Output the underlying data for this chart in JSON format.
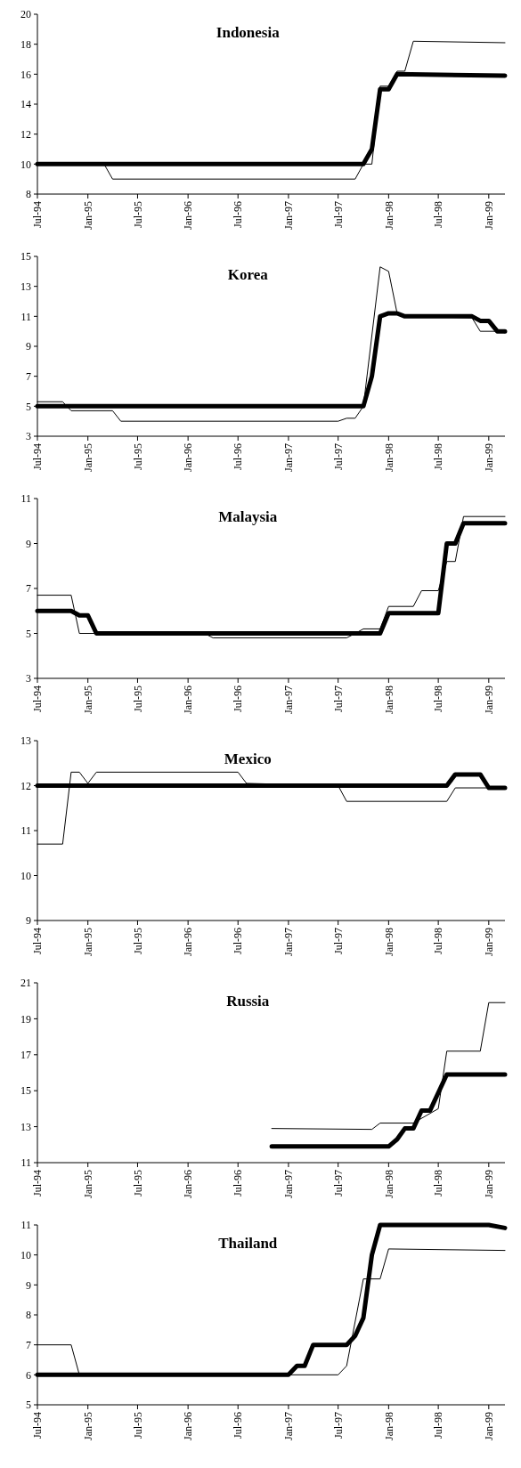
{
  "chart_data": [
    {
      "type": "line",
      "title": "Indonesia",
      "xlim": [
        "1994-07",
        "1999-03"
      ],
      "xticks": [
        {
          "value": "1994-07",
          "label": "Jul-94"
        },
        {
          "value": "1995-01",
          "label": "Jan-95"
        },
        {
          "value": "1995-07",
          "label": "Jul-95"
        },
        {
          "value": "1996-01",
          "label": "Jan-96"
        },
        {
          "value": "1996-07",
          "label": "Jul-96"
        },
        {
          "value": "1997-01",
          "label": "Jan-97"
        },
        {
          "value": "1997-07",
          "label": "Jul-97"
        },
        {
          "value": "1998-01",
          "label": "Jan-98"
        },
        {
          "value": "1998-07",
          "label": "Jul-98"
        },
        {
          "value": "1999-01",
          "label": "Jan-99"
        }
      ],
      "ylim": [
        8,
        20
      ],
      "yticks": [
        8,
        10,
        12,
        14,
        16,
        18,
        20
      ],
      "series": [
        {
          "color": "#000000",
          "x": [
            "1994-07",
            "1995-03",
            "1995-04",
            "1997-09",
            "1997-10",
            "1997-11",
            "1997-12",
            "1998-01",
            "1998-02",
            "1998-03",
            "1998-04",
            "1999-03"
          ],
          "values": [
            10,
            10,
            9,
            9,
            10,
            10,
            15.2,
            15.2,
            16.2,
            16.2,
            18.2,
            18.1
          ]
        },
        {
          "color": "#000000",
          "x": [
            "1994-07",
            "1997-10",
            "1997-11",
            "1997-12",
            "1998-01",
            "1998-02",
            "1999-03"
          ],
          "values": [
            10,
            10,
            11,
            15,
            15,
            16,
            15.9
          ]
        }
      ]
    },
    {
      "type": "line",
      "title": "Korea",
      "xlim": [
        "1994-07",
        "1999-03"
      ],
      "xticks": [
        {
          "value": "1994-07",
          "label": "Jul-94"
        },
        {
          "value": "1995-01",
          "label": "Jan-95"
        },
        {
          "value": "1995-07",
          "label": "Jul-95"
        },
        {
          "value": "1996-01",
          "label": "Jan-96"
        },
        {
          "value": "1996-07",
          "label": "Jul-96"
        },
        {
          "value": "1997-01",
          "label": "Jan-97"
        },
        {
          "value": "1997-07",
          "label": "Jul-97"
        },
        {
          "value": "1998-01",
          "label": "Jan-98"
        },
        {
          "value": "1998-07",
          "label": "Jul-98"
        },
        {
          "value": "1999-01",
          "label": "Jan-99"
        }
      ],
      "ylim": [
        3,
        15
      ],
      "yticks": [
        3,
        5,
        7,
        9,
        11,
        13,
        15
      ],
      "series": [
        {
          "color": "#000000",
          "x": [
            "1994-07",
            "1994-10",
            "1994-11",
            "1995-04",
            "1995-05",
            "1997-07",
            "1997-08",
            "1997-09",
            "1997-10",
            "1997-12",
            "1998-01",
            "1998-02",
            "1998-03",
            "1998-11",
            "1998-12",
            "1999-02",
            "1999-03"
          ],
          "values": [
            5.3,
            5.3,
            4.7,
            4.7,
            4,
            4,
            4.2,
            4.2,
            5,
            14.3,
            14,
            11.2,
            11,
            10.9,
            10,
            10,
            9.9
          ]
        },
        {
          "color": "#000000",
          "x": [
            "1994-07",
            "1997-10",
            "1997-11",
            "1997-12",
            "1998-01",
            "1998-02",
            "1998-03",
            "1998-11",
            "1998-12",
            "1999-01",
            "1999-02",
            "1999-03"
          ],
          "values": [
            5,
            5,
            7,
            11,
            11.2,
            11.2,
            11,
            11,
            10.7,
            10.7,
            10,
            10
          ]
        }
      ]
    },
    {
      "type": "line",
      "title": "Malaysia",
      "xlim": [
        "1994-07",
        "1999-03"
      ],
      "xticks": [
        {
          "value": "1994-07",
          "label": "Jul-94"
        },
        {
          "value": "1995-01",
          "label": "Jan-95"
        },
        {
          "value": "1995-07",
          "label": "Jul-95"
        },
        {
          "value": "1996-01",
          "label": "Jan-96"
        },
        {
          "value": "1996-07",
          "label": "Jul-96"
        },
        {
          "value": "1997-01",
          "label": "Jan-97"
        },
        {
          "value": "1997-07",
          "label": "Jul-97"
        },
        {
          "value": "1998-01",
          "label": "Jan-98"
        },
        {
          "value": "1998-07",
          "label": "Jul-98"
        },
        {
          "value": "1999-01",
          "label": "Jan-99"
        }
      ],
      "ylim": [
        3,
        11
      ],
      "yticks": [
        3,
        5,
        7,
        9,
        11
      ],
      "series": [
        {
          "color": "#000000",
          "x": [
            "1994-07",
            "1994-11",
            "1994-12",
            "1996-03",
            "1996-04",
            "1997-08",
            "1997-09",
            "1997-10",
            "1997-12",
            "1998-01",
            "1998-04",
            "1998-05",
            "1998-07",
            "1998-08",
            "1998-09",
            "1998-10",
            "1999-03"
          ],
          "values": [
            6.7,
            6.7,
            5,
            5,
            4.8,
            4.8,
            5,
            5.2,
            5.2,
            6.2,
            6.2,
            6.9,
            6.9,
            8.2,
            8.2,
            10.2,
            10.2
          ]
        },
        {
          "color": "#000000",
          "x": [
            "1994-07",
            "1994-11",
            "1994-12",
            "1995-01",
            "1995-02",
            "1997-12",
            "1998-01",
            "1998-07",
            "1998-08",
            "1998-09",
            "1998-10",
            "1999-03"
          ],
          "values": [
            6,
            6,
            5.8,
            5.8,
            5,
            5,
            5.9,
            5.9,
            9,
            9,
            9.9,
            9.9
          ]
        }
      ]
    },
    {
      "type": "line",
      "title": "Mexico",
      "xlim": [
        "1994-07",
        "1999-03"
      ],
      "xticks": [
        {
          "value": "1994-07",
          "label": "Jul-94"
        },
        {
          "value": "1995-01",
          "label": "Jan-95"
        },
        {
          "value": "1995-07",
          "label": "Jul-95"
        },
        {
          "value": "1996-01",
          "label": "Jan-96"
        },
        {
          "value": "1996-07",
          "label": "Jul-96"
        },
        {
          "value": "1997-01",
          "label": "Jan-97"
        },
        {
          "value": "1997-07",
          "label": "Jul-97"
        },
        {
          "value": "1998-01",
          "label": "Jan-98"
        },
        {
          "value": "1998-07",
          "label": "Jul-98"
        },
        {
          "value": "1999-01",
          "label": "Jan-99"
        }
      ],
      "ylim": [
        9,
        13
      ],
      "yticks": [
        9,
        10,
        11,
        12,
        13
      ],
      "series": [
        {
          "color": "#000000",
          "x": [
            "1994-07",
            "1994-10",
            "1994-11",
            "1994-12",
            "1995-01",
            "1995-02",
            "1996-07",
            "1996-08",
            "1997-07",
            "1997-08",
            "1998-08",
            "1998-09",
            "1999-03"
          ],
          "values": [
            10.7,
            10.7,
            12.3,
            12.3,
            12.05,
            12.3,
            12.3,
            12.05,
            12,
            11.65,
            11.65,
            11.95,
            11.95
          ]
        },
        {
          "color": "#000000",
          "x": [
            "1994-07",
            "1998-08",
            "1998-09",
            "1998-12",
            "1999-01",
            "1999-03"
          ],
          "values": [
            12,
            12,
            12.25,
            12.25,
            11.95,
            11.95
          ]
        }
      ]
    },
    {
      "type": "line",
      "title": "Russia",
      "xlim": [
        "1994-07",
        "1999-03"
      ],
      "xticks": [
        {
          "value": "1994-07",
          "label": "Jul-94"
        },
        {
          "value": "1995-01",
          "label": "Jan-95"
        },
        {
          "value": "1995-07",
          "label": "Jul-95"
        },
        {
          "value": "1996-01",
          "label": "Jan-96"
        },
        {
          "value": "1996-07",
          "label": "Jul-96"
        },
        {
          "value": "1997-01",
          "label": "Jan-97"
        },
        {
          "value": "1997-07",
          "label": "Jul-97"
        },
        {
          "value": "1998-01",
          "label": "Jan-98"
        },
        {
          "value": "1998-07",
          "label": "Jul-98"
        },
        {
          "value": "1999-01",
          "label": "Jan-99"
        }
      ],
      "ylim": [
        11,
        21
      ],
      "yticks": [
        11,
        13,
        15,
        17,
        19,
        21
      ],
      "series": [
        {
          "color": "#000000",
          "x": [
            "1996-11",
            "1997-11",
            "1997-12",
            "1998-04",
            "1998-07",
            "1998-08",
            "1998-12",
            "1999-01",
            "1999-03"
          ],
          "values": [
            12.9,
            12.85,
            13.2,
            13.2,
            14,
            17.2,
            17.2,
            19.9,
            19.9
          ]
        },
        {
          "color": "#000000",
          "x": [
            "1996-11",
            "1998-01",
            "1998-02",
            "1998-03",
            "1998-04",
            "1998-05",
            "1998-06",
            "1998-08",
            "1999-03"
          ],
          "values": [
            11.9,
            11.9,
            12.3,
            12.9,
            12.9,
            13.9,
            13.9,
            15.9,
            15.9
          ]
        }
      ]
    },
    {
      "type": "line",
      "title": "Thailand",
      "xlim": [
        "1994-07",
        "1999-03"
      ],
      "xticks": [
        {
          "value": "1994-07",
          "label": "Jul-94"
        },
        {
          "value": "1995-01",
          "label": "Jan-95"
        },
        {
          "value": "1995-07",
          "label": "Jul-95"
        },
        {
          "value": "1996-01",
          "label": "Jan-96"
        },
        {
          "value": "1996-07",
          "label": "Jul-96"
        },
        {
          "value": "1997-01",
          "label": "Jan-97"
        },
        {
          "value": "1997-07",
          "label": "Jul-97"
        },
        {
          "value": "1998-01",
          "label": "Jan-98"
        },
        {
          "value": "1998-07",
          "label": "Jul-98"
        },
        {
          "value": "1999-01",
          "label": "Jan-99"
        }
      ],
      "ylim": [
        5,
        11
      ],
      "yticks": [
        5,
        6,
        7,
        8,
        9,
        10,
        11
      ],
      "series": [
        {
          "color": "#000000",
          "x": [
            "1994-07",
            "1994-11",
            "1994-12",
            "1997-07",
            "1997-08",
            "1997-10",
            "1997-12",
            "1998-01",
            "1999-03"
          ],
          "values": [
            7,
            7,
            6,
            6,
            6.3,
            9.2,
            9.2,
            10.2,
            10.15
          ]
        },
        {
          "color": "#000000",
          "x": [
            "1994-07",
            "1997-01",
            "1997-02",
            "1997-03",
            "1997-04",
            "1997-08",
            "1997-09",
            "1997-10",
            "1997-11",
            "1997-12",
            "1999-01",
            "1999-03"
          ],
          "values": [
            6,
            6,
            6.3,
            6.3,
            7,
            7,
            7.3,
            7.9,
            10,
            11,
            11,
            10.9
          ]
        }
      ]
    }
  ]
}
